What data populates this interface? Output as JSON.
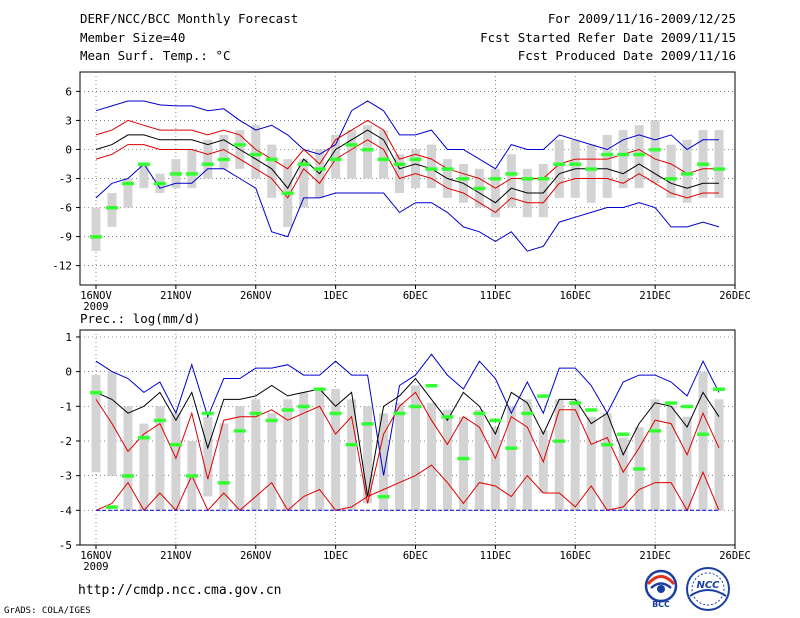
{
  "header": {
    "title": "DERF/NCC/BCC Monthly Forecast",
    "member_size": "Member Size=40",
    "variable_label": "Mean Surf. Temp.: °C",
    "period": "For 2009/11/16-2009/12/25",
    "started": "Fcst Started Refer Date 2009/11/15",
    "produced": "Fcst Produced Date 2009/11/16"
  },
  "footer": {
    "url": "http://cmdp.ncc.cma.gov.cn",
    "grads_credit": "GrADS: COLA/IGES",
    "bcc_logo_text": "BCC",
    "ncc_logo_text": "NCC"
  },
  "colors": {
    "max_line": "#0000cc",
    "spread_line": "#dd0000",
    "mean_line": "#000000",
    "box": "#d3d3d3",
    "median_bar": "#33ff33",
    "grid": "#555555"
  },
  "chart_data": [
    {
      "type": "box-line",
      "title": "Mean Surf. Temp.: °C",
      "xlabel": "",
      "ylabel": "",
      "ylim": [
        -14,
        8
      ],
      "yticks": [
        6,
        3,
        0,
        -3,
        -6,
        -9,
        -12
      ],
      "xticks": [
        {
          "day": 0,
          "label": "16NOV"
        },
        {
          "day": 5,
          "label": "21NOV"
        },
        {
          "day": 10,
          "label": "26NOV"
        },
        {
          "day": 15,
          "label": "1DEC"
        },
        {
          "day": 20,
          "label": "6DEC"
        },
        {
          "day": 25,
          "label": "11DEC"
        },
        {
          "day": 30,
          "label": "16DEC"
        },
        {
          "day": 35,
          "label": "21DEC"
        },
        {
          "day": 40,
          "label": "26DEC"
        }
      ],
      "year_label": "2009",
      "days": [
        0,
        1,
        2,
        3,
        4,
        5,
        6,
        7,
        8,
        9,
        10,
        11,
        12,
        13,
        14,
        15,
        16,
        17,
        18,
        19,
        20,
        21,
        22,
        23,
        24,
        25,
        26,
        27,
        28,
        29,
        30,
        31,
        32,
        33,
        34,
        35,
        36,
        37,
        38,
        39
      ],
      "series": [
        {
          "name": "max",
          "color": "blue",
          "values": [
            4,
            4.5,
            5,
            5,
            4.6,
            4.5,
            4.5,
            4,
            4.2,
            3,
            2,
            2.5,
            1.5,
            0,
            -0.5,
            0.5,
            4,
            5,
            4,
            1.5,
            1.5,
            2,
            0,
            0,
            -1,
            -2,
            0.5,
            0,
            0,
            1.5,
            1,
            0.5,
            0,
            1,
            1.5,
            1,
            1.5,
            0,
            1,
            1
          ]
        },
        {
          "name": "p75",
          "color": "red",
          "values": [
            1.5,
            2,
            3,
            2.5,
            2,
            2,
            2,
            1.5,
            2,
            1.5,
            0,
            -1,
            -2,
            0,
            -1.5,
            1,
            2,
            3,
            2,
            -1,
            -0.5,
            -1,
            -2,
            -2.5,
            -3,
            -4,
            -3,
            -3,
            -3,
            -1.5,
            -1,
            -1,
            -1,
            -0.5,
            0,
            -1,
            -1.5,
            -2.5,
            -2,
            -2
          ]
        },
        {
          "name": "mean",
          "color": "black",
          "values": [
            0,
            0.5,
            1.5,
            1.5,
            1,
            1,
            1,
            0.5,
            1,
            0,
            -1,
            -2,
            -4,
            -1,
            -2.5,
            0,
            1,
            2,
            1,
            -2,
            -1.5,
            -2,
            -3,
            -3.5,
            -4.5,
            -5.5,
            -4,
            -4.5,
            -4.5,
            -2.5,
            -2,
            -2,
            -2,
            -2.5,
            -1.5,
            -2.5,
            -3.5,
            -4,
            -3.5,
            -3.5
          ]
        },
        {
          "name": "p25",
          "color": "red",
          "values": [
            -1,
            -0.5,
            0.5,
            0.5,
            0,
            0,
            0,
            -0.5,
            0,
            -1,
            -2,
            -3,
            -5,
            -2,
            -3.5,
            -1,
            0,
            1,
            0,
            -3,
            -2.5,
            -3,
            -4,
            -4.5,
            -5.5,
            -6.5,
            -5,
            -5.5,
            -5.5,
            -3.5,
            -3,
            -3,
            -3,
            -3.5,
            -2.5,
            -3.5,
            -4.5,
            -5,
            -4.5,
            -4.5
          ]
        },
        {
          "name": "min",
          "color": "blue",
          "values": [
            -5,
            -3.5,
            -3,
            -1.5,
            -4,
            -3.5,
            -3.5,
            -2,
            -2,
            -3,
            -4,
            -8.5,
            -9,
            -5,
            -5,
            -4.5,
            -4.5,
            -4.5,
            -4.5,
            -6.5,
            -5.5,
            -5.5,
            -6.5,
            -8,
            -8.5,
            -9.5,
            -8.5,
            -10.5,
            -10,
            -7.5,
            -7,
            -6.5,
            -6,
            -6,
            -5.5,
            -6,
            -8,
            -8,
            -7.5,
            -8
          ]
        },
        {
          "name": "median",
          "color": "green",
          "values": [
            -9,
            -6,
            -3.5,
            -1.5,
            -3.5,
            -2.5,
            -2.5,
            -1.5,
            -1,
            0.5,
            -0.5,
            -1,
            -4.5,
            -1.5,
            -2,
            -1,
            0.5,
            0,
            -1,
            -1.5,
            -1,
            -2,
            -2,
            -3,
            -4,
            -3,
            -2.5,
            -3,
            -3,
            -1.5,
            -1.5,
            -2,
            -0.5,
            -0.5,
            -0.5,
            0,
            -3,
            -2.5,
            -1.5,
            -2
          ]
        }
      ],
      "boxes": [
        [
          -10.5,
          -6
        ],
        [
          -8,
          -4.5
        ],
        [
          -6,
          -3
        ],
        [
          -4,
          -1.5
        ],
        [
          -4.5,
          -2.5
        ],
        [
          -4,
          -1
        ],
        [
          -4,
          0
        ],
        [
          -3,
          1
        ],
        [
          -2,
          1.5
        ],
        [
          -2,
          2
        ],
        [
          -3,
          2.5
        ],
        [
          -5,
          0.5
        ],
        [
          -8,
          -1
        ],
        [
          -6,
          -1
        ],
        [
          -5,
          0
        ],
        [
          -3,
          1.5
        ],
        [
          -3,
          2
        ],
        [
          -3,
          2.5
        ],
        [
          -3,
          2
        ],
        [
          -4.5,
          -0.5
        ],
        [
          -4,
          0
        ],
        [
          -4,
          0.5
        ],
        [
          -5,
          -1
        ],
        [
          -5.5,
          -1.5
        ],
        [
          -6,
          -2
        ],
        [
          -7,
          -2
        ],
        [
          -6,
          -0.5
        ],
        [
          -7,
          -2
        ],
        [
          -7,
          -1.5
        ],
        [
          -5,
          1
        ],
        [
          -5,
          1
        ],
        [
          -5.5,
          0.5
        ],
        [
          -5,
          1.5
        ],
        [
          -4,
          2
        ],
        [
          -4,
          2.5
        ],
        [
          -3.5,
          3
        ],
        [
          -5,
          0.5
        ],
        [
          -5.5,
          1
        ],
        [
          -5,
          2
        ],
        [
          -5,
          2
        ]
      ]
    },
    {
      "type": "box-line",
      "title": "Prec.: log(mm/d)",
      "xlabel": "",
      "ylabel": "",
      "ylim": [
        -5,
        1.2
      ],
      "yticks": [
        1,
        0,
        -1,
        -2,
        -3,
        -4,
        -5
      ],
      "xticks": [
        {
          "day": 0,
          "label": "16NOV"
        },
        {
          "day": 5,
          "label": "21NOV"
        },
        {
          "day": 10,
          "label": "26NOV"
        },
        {
          "day": 15,
          "label": "1DEC"
        },
        {
          "day": 20,
          "label": "6DEC"
        },
        {
          "day": 25,
          "label": "11DEC"
        },
        {
          "day": 30,
          "label": "16DEC"
        },
        {
          "day": 35,
          "label": "21DEC"
        },
        {
          "day": 40,
          "label": "26DEC"
        }
      ],
      "year_label": "2009",
      "days": [
        0,
        1,
        2,
        3,
        4,
        5,
        6,
        7,
        8,
        9,
        10,
        11,
        12,
        13,
        14,
        15,
        16,
        17,
        18,
        19,
        20,
        21,
        22,
        23,
        24,
        25,
        26,
        27,
        28,
        29,
        30,
        31,
        32,
        33,
        34,
        35,
        36,
        37,
        38,
        39
      ],
      "series": [
        {
          "name": "max",
          "color": "blue",
          "values": [
            0.3,
            0,
            -0.2,
            -0.6,
            -0.3,
            -1.2,
            0.2,
            -1.3,
            -0.2,
            -0.2,
            0.1,
            0.1,
            0.2,
            -0.1,
            -0.1,
            0.3,
            -0.1,
            -0.1,
            -3,
            -0.4,
            -0.1,
            0.5,
            -0.1,
            -0.5,
            0.3,
            -0.2,
            -1.2,
            -0.3,
            -1.2,
            0.1,
            0.1,
            -0.4,
            -1.2,
            -0.3,
            -0.1,
            -0.1,
            -0.3,
            -0.7,
            0.3,
            -0.6
          ]
        },
        {
          "name": "mean",
          "color": "black",
          "values": [
            -0.6,
            -0.8,
            -1.2,
            -1.0,
            -0.6,
            -1.4,
            -0.6,
            -2.2,
            -0.8,
            -0.8,
            -0.7,
            -0.4,
            -0.7,
            -0.6,
            -0.5,
            -1.0,
            -0.6,
            -3.6,
            -1.0,
            -0.7,
            -0.2,
            -0.8,
            -1.4,
            -0.6,
            -1.0,
            -1.8,
            -0.6,
            -0.9,
            -1.8,
            -0.8,
            -0.8,
            -1.5,
            -1.2,
            -2.4,
            -1.5,
            -0.9,
            -1.0,
            -1.6,
            -0.6,
            -1.3
          ]
        },
        {
          "name": "p75",
          "color": "red",
          "values": [
            -0.8,
            -1.5,
            -2.3,
            -1.8,
            -1.5,
            -2.5,
            -1.2,
            -3.1,
            -1.4,
            -1.3,
            -1.3,
            -1.1,
            -1.4,
            -1.2,
            -1.0,
            -1.8,
            -1.3,
            -3.8,
            -1.8,
            -1.0,
            -0.6,
            -1.4,
            -2.1,
            -1.3,
            -1.6,
            -2.5,
            -1.3,
            -1.6,
            -2.6,
            -1.1,
            -1.1,
            -2.1,
            -1.9,
            -2.9,
            -2.2,
            -1.4,
            -1.5,
            -2.4,
            -1.2,
            -2.2
          ]
        },
        {
          "name": "p25",
          "color": "red",
          "values": [
            -4,
            -3.8,
            -3.2,
            -4,
            -3.5,
            -4,
            -3.0,
            -4,
            -3.5,
            -4,
            -3.6,
            -3.2,
            -4,
            -3.6,
            -3.4,
            -4,
            -3.9,
            -3.6,
            -3.4,
            -3.2,
            -3.0,
            -2.7,
            -3.2,
            -3.8,
            -3.2,
            -3.3,
            -3.6,
            -3.0,
            -3.5,
            -3.5,
            -3.9,
            -3.3,
            -4,
            -3.9,
            -3.4,
            -3.2,
            -3.2,
            -4,
            -2.9,
            -4
          ]
        },
        {
          "name": "min",
          "color": "blue",
          "values": [
            -4,
            -4,
            -4,
            -4,
            -4,
            -4,
            -4,
            -4,
            -4,
            -4,
            -4,
            -4,
            -4,
            -4,
            -4,
            -4,
            -4,
            -4,
            -4,
            -4,
            -4,
            -4,
            -4,
            -4,
            -4,
            -4,
            -4,
            -4,
            -4,
            -4,
            -4,
            -4,
            -4,
            -4,
            -4,
            -4,
            -4,
            -4,
            -4,
            -4
          ]
        },
        {
          "name": "median",
          "color": "green",
          "values": [
            -0.6,
            -3.9,
            -3,
            -1.9,
            -1.4,
            -2.1,
            -3,
            -1.2,
            -3.2,
            -1.7,
            -1.2,
            -1.4,
            -1.1,
            -1.0,
            -0.5,
            -1.2,
            -2.1,
            -1.5,
            -3.6,
            -1.2,
            -1.0,
            -0.4,
            -1.3,
            -2.5,
            -1.2,
            -1.4,
            -2.2,
            -1.2,
            -0.7,
            -2.0,
            -0.9,
            -1.1,
            -2.1,
            -1.8,
            -2.8,
            -1.7,
            -0.9,
            -1.0,
            -1.8,
            -0.5
          ]
        }
      ],
      "boxes": [
        [
          -2.9,
          -0.1
        ],
        [
          -3,
          0
        ],
        [
          -4,
          -1
        ],
        [
          -4,
          -1.5
        ],
        [
          -4,
          -1
        ],
        [
          -4,
          -1.2
        ],
        [
          -4,
          -2
        ],
        [
          -3.6,
          -1.3
        ],
        [
          -4,
          -1.5
        ],
        [
          -4,
          -1
        ],
        [
          -4,
          -0.8
        ],
        [
          -4,
          -1.2
        ],
        [
          -4,
          -0.8
        ],
        [
          -4,
          -0.6
        ],
        [
          -4,
          -0.5
        ],
        [
          -4,
          -0.5
        ],
        [
          -4,
          -0.8
        ],
        [
          -3.8,
          -1
        ],
        [
          -4,
          -1.2
        ],
        [
          -4,
          -0.9
        ],
        [
          -4,
          -0.4
        ],
        [
          -4,
          -0.9
        ],
        [
          -4,
          -1.1
        ],
        [
          -4,
          -1.3
        ],
        [
          -4,
          -1.1
        ],
        [
          -4,
          -1.6
        ],
        [
          -4,
          -1
        ],
        [
          -4,
          -0.8
        ],
        [
          -3.5,
          -1.7
        ],
        [
          -4,
          -0.8
        ],
        [
          -4,
          -0.8
        ],
        [
          -4,
          -1.3
        ],
        [
          -4,
          -1.2
        ],
        [
          -4,
          -1.9
        ],
        [
          -4,
          -1.6
        ],
        [
          -4,
          -0.8
        ],
        [
          -4,
          -1
        ],
        [
          -4,
          -1.3
        ],
        [
          -4,
          0
        ],
        [
          -4,
          -0.8
        ]
      ]
    }
  ]
}
